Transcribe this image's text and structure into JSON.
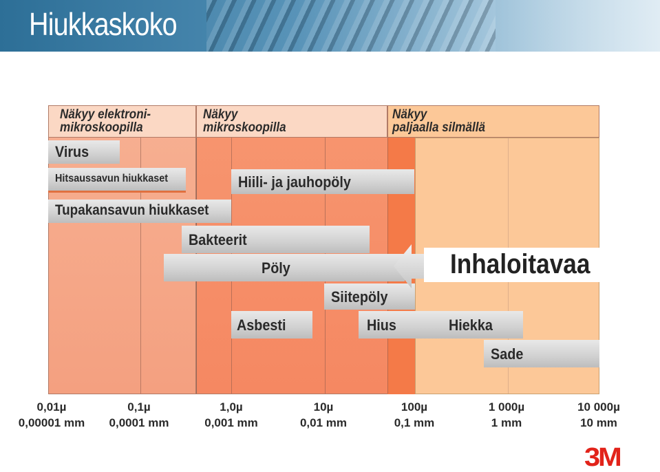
{
  "title": "Hiukkaskoko",
  "zones": {
    "electron": "Näkyy elektroni-\nmikroskoopilla",
    "microscope": "Näkyy\nmikroskoopilla",
    "eye": "Näkyy\npaljaalla silmällä"
  },
  "particles": {
    "virus": "Virus",
    "welding": "Hitsaussavun hiukkaset",
    "tobacco": "Tupakansavun hiukkaset",
    "coal": "Hiili- ja jauhopöly",
    "bacteria": "Bakteerit",
    "dust": "Pöly",
    "pollen": "Siitepöly",
    "asbestos": "Asbesti",
    "hair": "Hius",
    "sand": "Hiekka",
    "rain": "Sade"
  },
  "inhalable": "Inhaloitavaa",
  "axis": {
    "ticks": [
      {
        "micro": "0,01µ",
        "mm": "0,00001 mm"
      },
      {
        "micro": "0,1µ",
        "mm": "0,0001 mm"
      },
      {
        "micro": "1,0µ",
        "mm": "0,001 mm"
      },
      {
        "micro": "10µ",
        "mm": "0,01 mm"
      },
      {
        "micro": "100µ",
        "mm": "0,1 mm"
      },
      {
        "micro": "1 000µ",
        "mm": "1 mm"
      },
      {
        "micro": "10 000µ",
        "mm": "10 mm"
      }
    ]
  },
  "logo": "3M",
  "colors": {
    "electron_zone": "#f4a384",
    "microscope_zone": "#f58a62",
    "eye_zone": "#fcc898",
    "bar": "#d3d3d3",
    "logo": "#e2231a"
  }
}
